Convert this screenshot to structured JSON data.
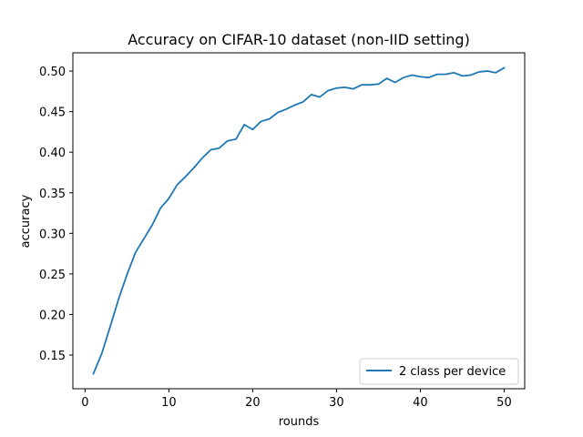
{
  "chart_data": {
    "type": "line",
    "title": "Accuracy on CIFAR-10 dataset (non-IID setting)",
    "xlabel": "rounds",
    "ylabel": "accuracy",
    "xlim": [
      -1.45,
      52.45
    ],
    "ylim": [
      0.1085,
      0.5225
    ],
    "x_ticks": [
      0,
      10,
      20,
      30,
      40,
      50
    ],
    "y_ticks": [
      0.15,
      0.2,
      0.25,
      0.3,
      0.35,
      0.4,
      0.45,
      0.5
    ],
    "grid": false,
    "legend": "lower-right",
    "colors": {
      "series": "#1f77b4"
    },
    "series": [
      {
        "name": "2 class per device",
        "x": [
          1,
          2,
          3,
          4,
          5,
          6,
          7,
          8,
          9,
          10,
          11,
          12,
          13,
          14,
          15,
          16,
          17,
          18,
          19,
          20,
          21,
          22,
          23,
          24,
          25,
          26,
          27,
          28,
          29,
          30,
          31,
          32,
          33,
          34,
          35,
          36,
          37,
          38,
          39,
          40,
          41,
          42,
          43,
          44,
          45,
          46,
          47,
          48,
          49,
          50
        ],
        "y": [
          0.127,
          0.152,
          0.185,
          0.219,
          0.249,
          0.276,
          0.293,
          0.31,
          0.331,
          0.343,
          0.36,
          0.37,
          0.381,
          0.393,
          0.403,
          0.405,
          0.414,
          0.416,
          0.434,
          0.428,
          0.438,
          0.441,
          0.449,
          0.453,
          0.458,
          0.462,
          0.471,
          0.468,
          0.476,
          0.479,
          0.48,
          0.478,
          0.483,
          0.483,
          0.484,
          0.491,
          0.486,
          0.492,
          0.495,
          0.493,
          0.492,
          0.496,
          0.496,
          0.498,
          0.494,
          0.495,
          0.499,
          0.5,
          0.498,
          0.504
        ]
      }
    ]
  }
}
